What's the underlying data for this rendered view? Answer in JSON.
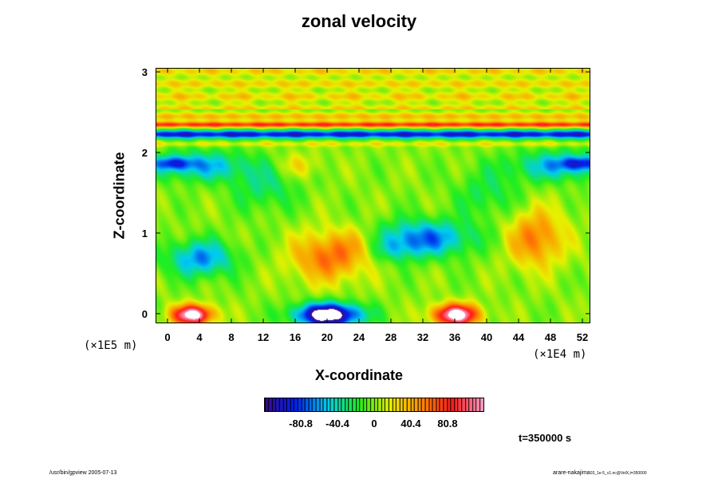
{
  "chart_data": {
    "type": "heatmap",
    "title": "zonal velocity",
    "xlabel": "X-coordinate",
    "ylabel": "Z-coordinate",
    "x_scale_note": "(×1E4 m)",
    "y_scale_note": "(×1E5 m)",
    "xlim": [
      -1.5,
      53
    ],
    "ylim": [
      -0.12,
      3.05
    ],
    "x_ticks": [
      "0",
      "4",
      "8",
      "12",
      "16",
      "20",
      "24",
      "28",
      "32",
      "36",
      "40",
      "44",
      "48",
      "52"
    ],
    "x_tick_values": [
      0,
      4,
      8,
      12,
      16,
      20,
      24,
      28,
      32,
      36,
      40,
      44,
      48,
      52
    ],
    "y_ticks": [
      "0",
      "1",
      "2",
      "3"
    ],
    "y_tick_values": [
      0,
      1,
      2,
      3
    ],
    "colorbar": {
      "ticks": [
        "-80.8",
        "-40.4",
        "0",
        "40.4",
        "80.8"
      ],
      "tick_values": [
        -80.8,
        -40.4,
        0,
        40.4,
        80.8
      ],
      "range": [
        -121.2,
        121.2
      ],
      "colormap": "rainbow (purple-blue-cyan-green-yellow-orange-red-pink)"
    },
    "colors": {
      "purple": "#3a0a8c",
      "blue": "#0022ee",
      "cyan": "#00ccee",
      "green": "#20ee20",
      "yellow": "#e8f000",
      "orange": "#ff8c00",
      "red": "#ff1a1a",
      "pink": "#ffa0c8",
      "saturated": "#ffffff"
    },
    "features": [
      {
        "x": 26,
        "z": 2.78,
        "value": 20,
        "note": "green upper layer"
      },
      {
        "x": 26,
        "z": 2.45,
        "value": 30,
        "note": "yellow band"
      },
      {
        "x": 26,
        "z": 2.36,
        "value": 75,
        "note": "red jet band"
      },
      {
        "x": 26,
        "z": 2.25,
        "value": -80,
        "note": "blue jet band"
      },
      {
        "x": 20,
        "z": 0.75,
        "value": 60,
        "note": "orange positive region"
      },
      {
        "x": 46,
        "z": 0.95,
        "value": 55,
        "note": "orange positive region"
      },
      {
        "x": 32,
        "z": 0.95,
        "value": -70,
        "note": "blue negative region"
      },
      {
        "x": 4,
        "z": 0.7,
        "value": -65,
        "note": "blue negative region"
      },
      {
        "x": 3,
        "z": 0.0,
        "value": 120,
        "note": "saturated positive"
      },
      {
        "x": 20,
        "z": 0.0,
        "value": -120,
        "note": "saturated negative"
      },
      {
        "x": 36,
        "z": 0.0,
        "value": 120,
        "note": "saturated positive"
      },
      {
        "x": 1,
        "z": 1.85,
        "value": -90,
        "note": "dark blue"
      },
      {
        "x": 51,
        "z": 1.85,
        "value": -90,
        "note": "dark blue"
      }
    ]
  },
  "time_label": "t=350000 s",
  "footer_left": "/usr/bin/gpview 2005-07-13",
  "footer_right": "arare-nakajima",
  "footer_right_sub": "03_1e-5_v1.nc@VelX,t=350000"
}
